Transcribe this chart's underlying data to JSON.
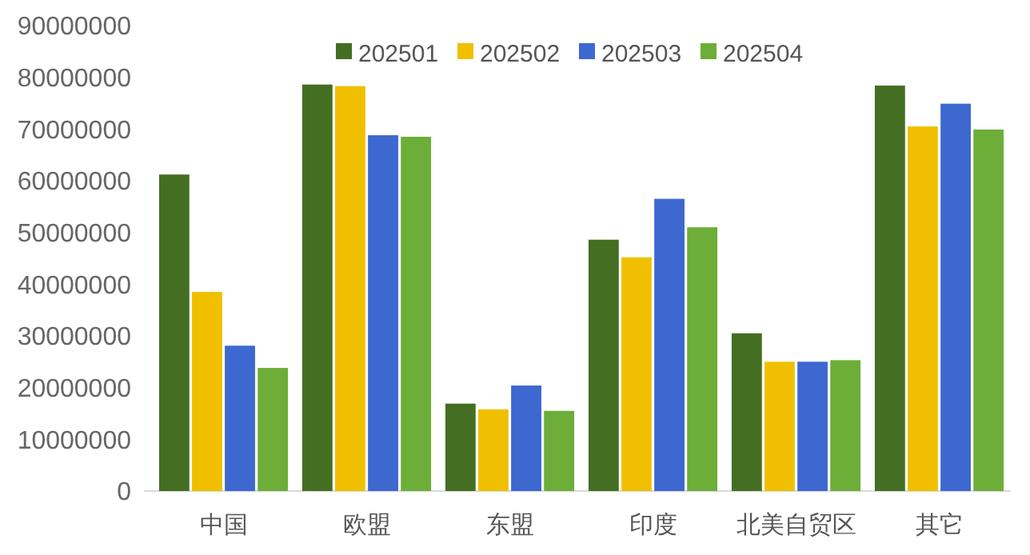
{
  "chart_data": {
    "type": "bar",
    "categories": [
      "中国",
      "欧盟",
      "东盟",
      "印度",
      "北美自贸区",
      "其它"
    ],
    "series": [
      {
        "name": "202501",
        "color": "#446f22",
        "values": [
          61200000,
          78600000,
          16900000,
          48600000,
          30500000,
          78400000
        ]
      },
      {
        "name": "202502",
        "color": "#f0c000",
        "values": [
          38500000,
          78300000,
          15800000,
          45200000,
          25000000,
          70500000
        ]
      },
      {
        "name": "202503",
        "color": "#3d68d0",
        "values": [
          28100000,
          68800000,
          20400000,
          56500000,
          25000000,
          74900000
        ]
      },
      {
        "name": "202504",
        "color": "#6cae38",
        "values": [
          23800000,
          68500000,
          15500000,
          51000000,
          25300000,
          69900000
        ]
      }
    ],
    "ylim": [
      0,
      90000000
    ],
    "yticks": [
      0,
      10000000,
      20000000,
      30000000,
      40000000,
      50000000,
      60000000,
      70000000,
      80000000,
      90000000
    ],
    "grid": false,
    "legend": "top"
  }
}
